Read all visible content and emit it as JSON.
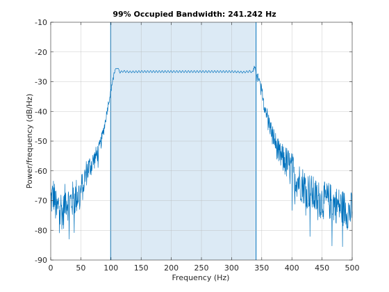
{
  "chart_data": {
    "type": "line",
    "title": "99% Occupied Bandwidth: 241.242 Hz",
    "xlabel": "Frequency (Hz)",
    "ylabel": "Power/frequency (dB/Hz)",
    "xlim": [
      0,
      500
    ],
    "ylim": [
      -90,
      -10
    ],
    "xticks": [
      0,
      50,
      100,
      150,
      200,
      250,
      300,
      350,
      400,
      450,
      500
    ],
    "yticks": [
      -10,
      -20,
      -30,
      -40,
      -50,
      -60,
      -70,
      -80,
      -90
    ],
    "grid": true,
    "occupied_band": {
      "low": 99.4,
      "high": 340.6
    },
    "series": [
      {
        "color": "#0072BD",
        "x": [
          0,
          5,
          10,
          15,
          20,
          25,
          30,
          40,
          50,
          60,
          70,
          80,
          85,
          90,
          95,
          100,
          103,
          106,
          110,
          115,
          120,
          130,
          150,
          200,
          250,
          300,
          320,
          330,
          335,
          338,
          340,
          345,
          350,
          355,
          360,
          365,
          370,
          375,
          380,
          390,
          400,
          410,
          420,
          430,
          440,
          450,
          460,
          470,
          480,
          490,
          495,
          500
        ],
        "y": [
          -70,
          -68,
          -74,
          -70,
          -75,
          -69,
          -71,
          -69,
          -67,
          -60,
          -57,
          -53,
          -49,
          -44,
          -38,
          -33,
          -29,
          -26.5,
          -25.2,
          -26.8,
          -26.5,
          -26.7,
          -26.6,
          -26.6,
          -26.6,
          -26.6,
          -26.8,
          -26.5,
          -26.8,
          -25.2,
          -26.5,
          -29,
          -33,
          -38,
          -42,
          -46,
          -49,
          -52,
          -55,
          -57,
          -60,
          -63,
          -65,
          -67,
          -69,
          -70,
          -70,
          -71,
          -72,
          -73,
          -74,
          -73
        ]
      }
    ]
  }
}
